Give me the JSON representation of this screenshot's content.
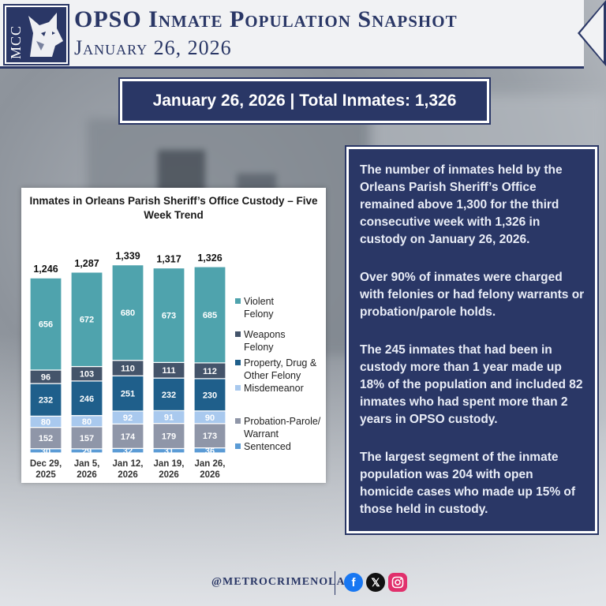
{
  "header": {
    "logo_text": "MCC",
    "title": "OPSO Inmate Population Snapshot",
    "date": "January 26, 2026"
  },
  "banner": {
    "text": "January 26, 2026 | Total Inmates: 1,326"
  },
  "chart_data": {
    "type": "bar",
    "stacked": true,
    "title": "Inmates in Orleans Parish Sheriff’s Office Custody – Five Week Trend",
    "categories": [
      "Dec 29, 2025",
      "Jan 5, 2026",
      "Jan 12, 2026",
      "Jan 19, 2026",
      "Jan 26, 2026"
    ],
    "totals": [
      1246,
      1287,
      1339,
      1317,
      1326
    ],
    "series": [
      {
        "name": "Sentenced",
        "values": [
          30,
          29,
          32,
          31,
          36
        ],
        "color": "#5b9bd5",
        "label_color": "#ffffff"
      },
      {
        "name": "Probation-Parole/ Warrant",
        "values": [
          152,
          157,
          174,
          179,
          173
        ],
        "color": "#8f96a8",
        "label_color": "#ffffff"
      },
      {
        "name": "Misdemeanor",
        "values": [
          80,
          80,
          92,
          91,
          90
        ],
        "color": "#a9c9ee",
        "label_color": "#ffffff"
      },
      {
        "name": "Property, Drug & Other Felony",
        "values": [
          232,
          246,
          251,
          232,
          230
        ],
        "color": "#1f5f8b",
        "label_color": "#ffffff"
      },
      {
        "name": "Weapons Felony",
        "values": [
          96,
          103,
          110,
          111,
          112
        ],
        "color": "#44546a",
        "label_color": "#ffffff"
      },
      {
        "name": "Violent Felony",
        "values": [
          656,
          672,
          680,
          673,
          685
        ],
        "color": "#4fa3ad",
        "label_color": "#ffffff"
      }
    ],
    "legend_position": "right",
    "grid": false
  },
  "panel": {
    "p1": "The number of inmates held by the Orleans Parish Sheriff’s Office remained above 1,300 for the third consecutive week with 1,326 in custody on January 26, 2026.",
    "p2": "Over 90% of inmates were charged with felonies or had felony warrants or probation/parole holds.",
    "p3": "The 245 inmates that had been in custody more than 1 year made up 18% of the population and included 82 inmates who had spent more than 2 years in OPSO custody.",
    "p4": "The largest segment of the inmate population was 204 with open homicide cases who made up 15% of those held in custody."
  },
  "footer": {
    "handle": "@METROCRIMENOLA",
    "icons": [
      "facebook-icon",
      "x-icon",
      "instagram-icon"
    ]
  },
  "colors": {
    "navy": "#2a3766"
  }
}
